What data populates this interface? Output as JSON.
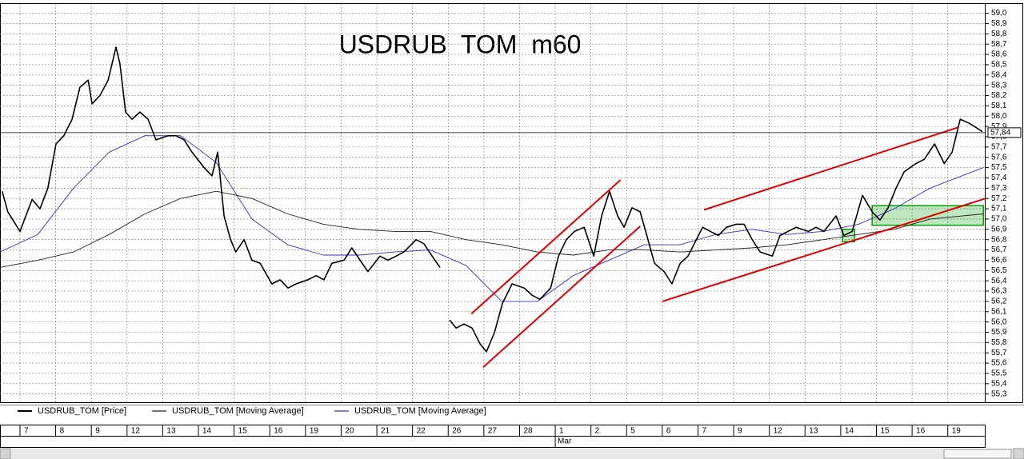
{
  "chart_data": {
    "type": "line",
    "title": "USDRUB  TOM  m60",
    "ylim": [
      55.22,
      59.09
    ],
    "xlim": [
      -0.56,
      27.06
    ],
    "yticks": [
      {
        "value": 55.3,
        "label": "55,3"
      },
      {
        "value": 55.4,
        "label": "55,4"
      },
      {
        "value": 55.5,
        "label": "55,5"
      },
      {
        "value": 55.6,
        "label": "55,6"
      },
      {
        "value": 55.7,
        "label": "55,7"
      },
      {
        "value": 55.8,
        "label": "55,8"
      },
      {
        "value": 55.9,
        "label": "55,9"
      },
      {
        "value": 56.0,
        "label": "56,0"
      },
      {
        "value": 56.1,
        "label": "56,1"
      },
      {
        "value": 56.2,
        "label": "56,2"
      },
      {
        "value": 56.3,
        "label": "56,3"
      },
      {
        "value": 56.4,
        "label": "56,4"
      },
      {
        "value": 56.5,
        "label": "56,5"
      },
      {
        "value": 56.6,
        "label": "56,6"
      },
      {
        "value": 56.7,
        "label": "56,7"
      },
      {
        "value": 56.8,
        "label": "56,8"
      },
      {
        "value": 56.9,
        "label": "56,9"
      },
      {
        "value": 57.0,
        "label": "57,0"
      },
      {
        "value": 57.1,
        "label": "57,1"
      },
      {
        "value": 57.2,
        "label": "57,2"
      },
      {
        "value": 57.3,
        "label": "57,3"
      },
      {
        "value": 57.4,
        "label": "57,4"
      },
      {
        "value": 57.5,
        "label": "57,5"
      },
      {
        "value": 57.6,
        "label": "57,6"
      },
      {
        "value": 57.7,
        "label": "57,7"
      },
      {
        "value": 57.8,
        "label": "57,8"
      },
      {
        "value": 57.9,
        "label": "57,9"
      },
      {
        "value": 58.0,
        "label": "58,0"
      },
      {
        "value": 58.1,
        "label": "58,1"
      },
      {
        "value": 58.2,
        "label": "58,2"
      },
      {
        "value": 58.3,
        "label": "58,3"
      },
      {
        "value": 58.4,
        "label": "58,4"
      },
      {
        "value": 58.5,
        "label": "58,5"
      },
      {
        "value": 58.6,
        "label": "58,6"
      },
      {
        "value": 58.7,
        "label": "58,7"
      },
      {
        "value": 58.8,
        "label": "58,8"
      },
      {
        "value": 58.9,
        "label": "58,9"
      },
      {
        "value": 59.0,
        "label": "59,0"
      }
    ],
    "xticks": [
      {
        "value": 0,
        "label": "7"
      },
      {
        "value": 1,
        "label": "8"
      },
      {
        "value": 2,
        "label": "9"
      },
      {
        "value": 3,
        "label": "12"
      },
      {
        "value": 4,
        "label": "13"
      },
      {
        "value": 5,
        "label": "14"
      },
      {
        "value": 6,
        "label": "15"
      },
      {
        "value": 7,
        "label": "16"
      },
      {
        "value": 8,
        "label": "19"
      },
      {
        "value": 9,
        "label": "20"
      },
      {
        "value": 10,
        "label": "21"
      },
      {
        "value": 11,
        "label": "22"
      },
      {
        "value": 12,
        "label": "26"
      },
      {
        "value": 13,
        "label": "27"
      },
      {
        "value": 14,
        "label": "28"
      },
      {
        "value": 15,
        "label": "1",
        "month": "Mar"
      },
      {
        "value": 16,
        "label": "2"
      },
      {
        "value": 17,
        "label": "5"
      },
      {
        "value": 18,
        "label": "6"
      },
      {
        "value": 19,
        "label": "7"
      },
      {
        "value": 20,
        "label": "9"
      },
      {
        "value": 21,
        "label": "12"
      },
      {
        "value": 22,
        "label": "13"
      },
      {
        "value": 23,
        "label": "14"
      },
      {
        "value": 24,
        "label": "15"
      },
      {
        "value": 25,
        "label": "16"
      },
      {
        "value": 26,
        "label": "19"
      }
    ],
    "grid": true,
    "series": [
      {
        "name": "USDRUB_TOM [Price]",
        "color": "#000000",
        "width": 1.6,
        "x": [
          -0.5,
          -0.34,
          0,
          0.34,
          0.56,
          0.78,
          1.01,
          1.23,
          1.46,
          1.68,
          1.91,
          2.02,
          2.24,
          2.47,
          2.69,
          2.8,
          2.96,
          3.14,
          3.36,
          3.59,
          3.81,
          4.15,
          4.37,
          4.6,
          4.82,
          5.16,
          5.38,
          5.54,
          5.72,
          5.9,
          6.05,
          6.28,
          6.5,
          6.73,
          7.06,
          7.29,
          7.51,
          7.74,
          8.07,
          8.3,
          8.52,
          8.74,
          9.08,
          9.3,
          9.53,
          9.75,
          10.09,
          10.31,
          10.54,
          10.76,
          11.1,
          11.32,
          11.55,
          11.77,
          11.9,
          12.04,
          12.22,
          12.44,
          12.67,
          12.89,
          13.07,
          13.3,
          13.52,
          13.79,
          14.13,
          14.35,
          14.57,
          14.87,
          15.09,
          15.31,
          15.54,
          15.81,
          16.08,
          16.3,
          16.52,
          16.75,
          16.93,
          17.15,
          17.38,
          17.6,
          17.78,
          18.05,
          18.27,
          18.5,
          18.72,
          19.13,
          19.35,
          19.57,
          19.8,
          20.07,
          20.29,
          20.52,
          20.74,
          21.08,
          21.3,
          21.52,
          21.75,
          22.09,
          22.31,
          22.53,
          22.87,
          23.09,
          23.32,
          23.61,
          23.88,
          24.1,
          24.33,
          24.55,
          24.78,
          25.11,
          25.34,
          25.63,
          25.9,
          26.12,
          26.35,
          26.61,
          26.97
        ],
        "values": [
          57.27,
          57.07,
          56.88,
          57.19,
          57.1,
          57.3,
          57.73,
          57.81,
          57.97,
          58.28,
          58.35,
          58.12,
          58.2,
          58.35,
          58.67,
          58.51,
          58.04,
          57.97,
          58.04,
          57.97,
          57.77,
          57.81,
          57.81,
          57.77,
          57.65,
          57.5,
          57.42,
          57.65,
          57.03,
          56.8,
          56.68,
          56.8,
          56.6,
          56.57,
          56.37,
          56.41,
          56.33,
          56.37,
          56.41,
          56.45,
          56.41,
          56.57,
          56.6,
          56.72,
          56.6,
          56.49,
          56.64,
          56.6,
          56.64,
          56.68,
          56.8,
          56.76,
          56.64,
          56.53,
          null,
          56.02,
          55.94,
          55.98,
          55.94,
          55.79,
          55.71,
          55.9,
          56.18,
          56.37,
          56.33,
          56.26,
          56.22,
          56.33,
          56.64,
          56.8,
          56.88,
          56.92,
          56.64,
          57.03,
          57.27,
          57.03,
          56.92,
          57.11,
          57.07,
          56.8,
          56.57,
          56.49,
          56.37,
          56.57,
          56.64,
          56.92,
          56.88,
          56.84,
          56.92,
          56.95,
          56.95,
          56.8,
          56.68,
          56.64,
          56.84,
          56.88,
          56.92,
          56.88,
          56.92,
          56.88,
          57.03,
          56.84,
          56.88,
          57.23,
          57.07,
          56.99,
          57.11,
          57.3,
          57.46,
          57.54,
          57.58,
          57.73,
          57.54,
          57.65,
          57.97,
          57.93,
          57.85
        ]
      },
      {
        "name": "USDRUB_TOM [Moving Average]",
        "color": "#202020",
        "width": 0.9,
        "x": [
          -0.56,
          0.5,
          1.5,
          2.5,
          3.5,
          4.5,
          5.5,
          6.5,
          7.5,
          8.5,
          9.5,
          10.5,
          11.5,
          12.5,
          13.5,
          14.5,
          15.5,
          16.5,
          17.5,
          18.5,
          19.5,
          20.5,
          21.5,
          22.5,
          23.5,
          24.5,
          25.5,
          27.0
        ],
        "values": [
          56.53,
          56.6,
          56.68,
          56.85,
          57.05,
          57.2,
          57.27,
          57.2,
          57.05,
          56.95,
          56.9,
          56.88,
          56.88,
          56.8,
          56.75,
          56.68,
          56.65,
          56.7,
          56.7,
          56.68,
          56.7,
          56.72,
          56.75,
          56.8,
          56.85,
          56.9,
          57.0,
          57.05
        ]
      },
      {
        "name": "USDRUB_TOM [Moving Average]",
        "color": "#3030c8",
        "width": 0.9,
        "x": [
          -0.56,
          0.5,
          1.5,
          2.5,
          3.5,
          4.5,
          5.5,
          6.5,
          7.5,
          8.5,
          9.5,
          10.5,
          11.5,
          12.5,
          13.5,
          14.5,
          15.5,
          16.5,
          17.5,
          18.5,
          19.5,
          20.5,
          21.5,
          22.5,
          23.5,
          24.5,
          25.5,
          27.0
        ],
        "values": [
          56.68,
          56.85,
          57.3,
          57.65,
          57.81,
          57.81,
          57.55,
          57.0,
          56.75,
          56.65,
          56.65,
          56.68,
          56.7,
          56.55,
          56.2,
          56.2,
          56.45,
          56.6,
          56.75,
          56.75,
          56.85,
          56.9,
          56.85,
          56.88,
          56.95,
          57.1,
          57.3,
          57.5
        ]
      }
    ],
    "last_price": {
      "value": 57.84,
      "label": "57,84"
    },
    "trendlines": [
      {
        "color": "#e00000",
        "x": [
          12.65,
          16.83
        ],
        "y": [
          56.08,
          57.38
        ]
      },
      {
        "color": "#e00000",
        "x": [
          12.98,
          17.38
        ],
        "y": [
          55.56,
          56.93
        ]
      },
      {
        "color": "#e00000",
        "x": [
          18.0,
          27.06
        ],
        "y": [
          56.2,
          57.2
        ]
      },
      {
        "color": "#e00000",
        "x": [
          19.17,
          26.28
        ],
        "y": [
          57.09,
          57.89
        ]
      }
    ],
    "zones": [
      {
        "color": "#00a000",
        "x": [
          23.88,
          27.0
        ],
        "y": [
          56.94,
          57.13
        ]
      },
      {
        "color": "#00a000",
        "x": [
          23.05,
          23.39
        ],
        "y": [
          56.78,
          56.9
        ]
      }
    ]
  }
}
